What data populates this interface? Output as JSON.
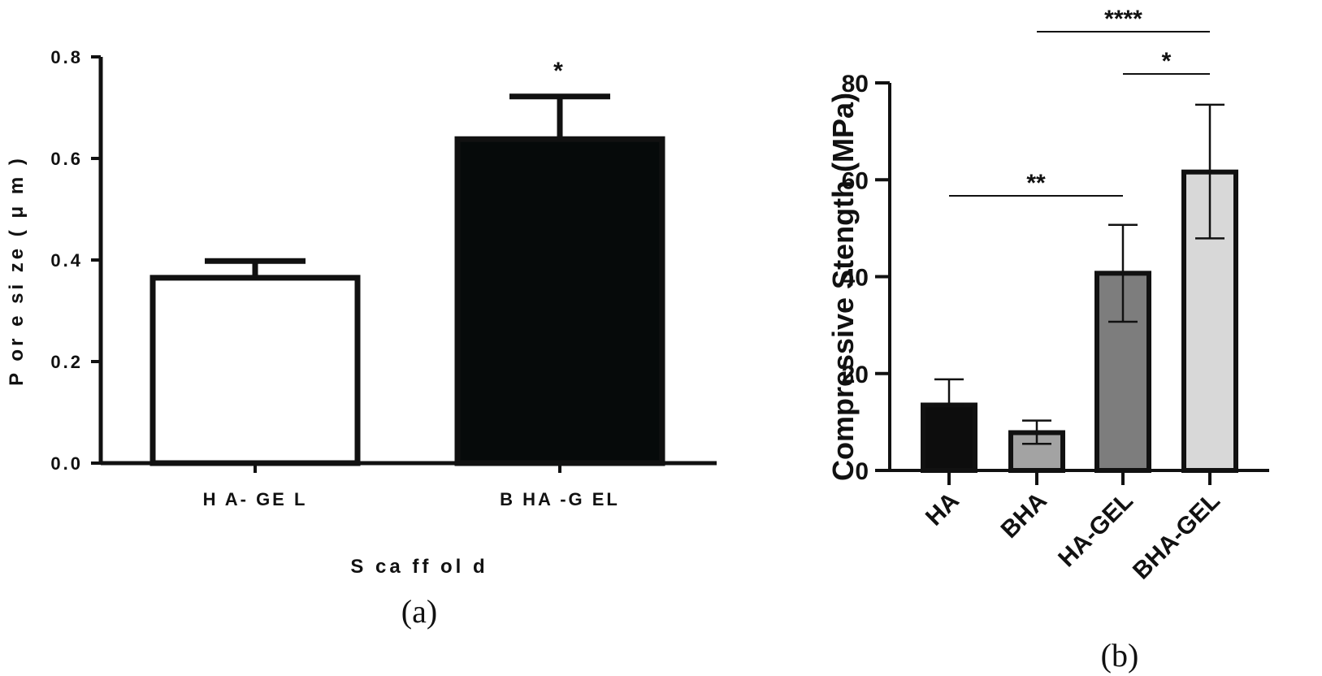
{
  "chart_data": [
    {
      "type": "bar",
      "panel_label": "(a)",
      "categories": [
        "H A- GE L",
        "B HA -G EL"
      ],
      "values": [
        0.365,
        0.638
      ],
      "error_up": [
        0.398,
        0.722
      ],
      "bar_colors": [
        "#ffffff",
        "#060a0a"
      ],
      "significance": [
        {
          "index": 1,
          "text": "*"
        }
      ],
      "xlabel": "S ca ff ol d",
      "ylabel": "P or e si ze (   μ m )",
      "ylim": [
        0,
        0.8
      ],
      "yticks": [
        "0.0",
        "0.2",
        "0.4",
        "0.6",
        "0.8"
      ],
      "ytick_values": [
        0,
        0.2,
        0.4,
        0.6,
        0.8
      ],
      "grid": false
    },
    {
      "type": "bar",
      "panel_label": "(b)",
      "categories": [
        "HA",
        "BHA",
        "HA-GEL",
        "BHA-GEL"
      ],
      "values": [
        13.5,
        7.8,
        40.7,
        61.6
      ],
      "error_low": [
        13.5,
        5.5,
        30.7,
        47.9
      ],
      "error_high": [
        18.8,
        10.3,
        50.7,
        75.5
      ],
      "bar_colors": [
        "#0d0d0d",
        "#a3a3a3",
        "#7d7d7d",
        "#d8d8d8"
      ],
      "significance": [
        {
          "from": 0,
          "to": 2,
          "text": "**"
        },
        {
          "from": 2,
          "to": 3,
          "text": "*"
        },
        {
          "from": 1,
          "to": 3,
          "text": "****"
        }
      ],
      "xlabel": "",
      "ylabel": "Compressive Stength  (MPa)",
      "ylim": [
        0,
        80
      ],
      "yticks": [
        "0",
        "20",
        "40",
        "60",
        "80"
      ],
      "ytick_values": [
        0,
        20,
        40,
        60,
        80
      ],
      "grid": false
    }
  ]
}
